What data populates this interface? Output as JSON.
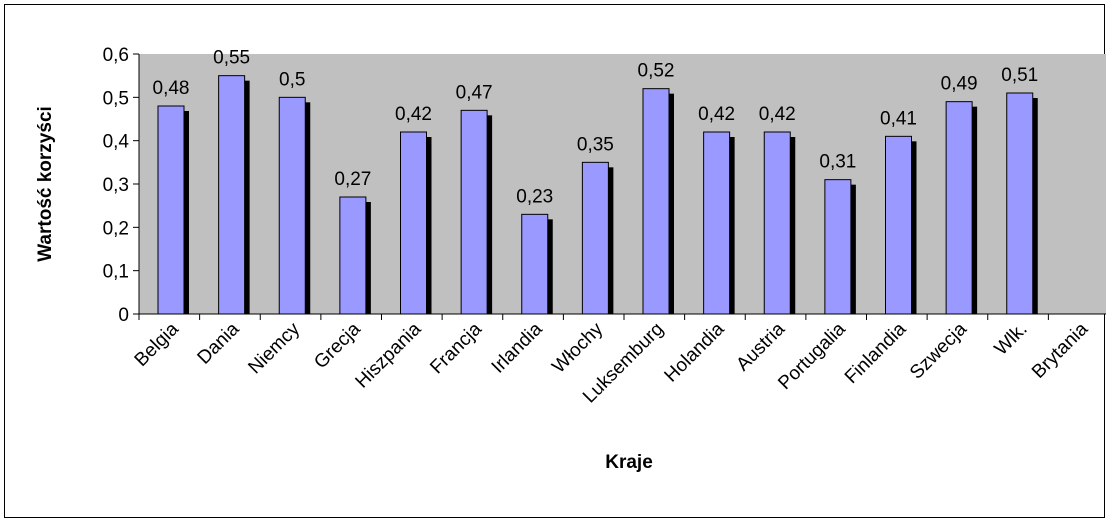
{
  "chart_data": {
    "type": "bar",
    "title": "",
    "xlabel": "Kraje",
    "ylabel": "Wartość korzyści",
    "ylim": [
      0,
      0.6
    ],
    "yticks": [
      "0",
      "0,1",
      "0,2",
      "0,3",
      "0,4",
      "0,5",
      "0,6"
    ],
    "categories": [
      "Belgia",
      "Dania",
      "Niemcy",
      "Grecja",
      "Hiszpania",
      "Francja",
      "Irlandia",
      "Włochy",
      "Luksemburg",
      "Holandia",
      "Austria",
      "Portugalia",
      "Finlandia",
      "Szwecja",
      "Wlk.",
      "Brytania"
    ],
    "values": [
      0.48,
      0.55,
      0.5,
      0.27,
      0.42,
      0.47,
      0.23,
      0.35,
      0.52,
      0.42,
      0.42,
      0.31,
      0.41,
      0.49,
      0.51,
      null
    ],
    "value_labels": [
      "0,48",
      "0,55",
      "0,5",
      "0,27",
      "0,42",
      "0,47",
      "0,23",
      "0,35",
      "0,52",
      "0,42",
      "0,42",
      "0,31",
      "0,41",
      "0,49",
      "0,51",
      ""
    ],
    "grid": false,
    "legend": "none",
    "colors": {
      "bar": "#9999ff",
      "bar_shadow": "#000000",
      "plot_background": "#c0c0c0",
      "axis": "#000000"
    }
  }
}
